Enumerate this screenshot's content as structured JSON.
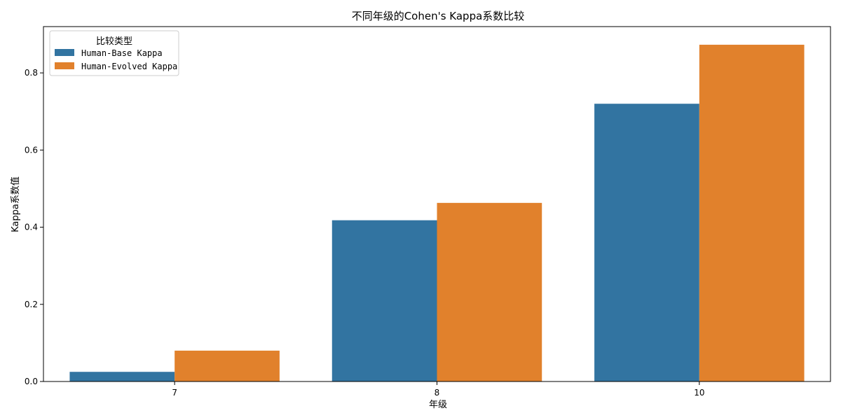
{
  "chart_data": {
    "type": "bar",
    "title": "不同年级的Cohen's Kappa系数比较",
    "xlabel": "年级",
    "ylabel": "Kappa系数值",
    "categories": [
      "7",
      "8",
      "10"
    ],
    "series": [
      {
        "name": "Human-Base Kappa",
        "color": "#3274a1",
        "values": [
          0.025,
          0.418,
          0.72
        ]
      },
      {
        "name": "Human-Evolved Kappa",
        "color": "#e1812c",
        "values": [
          0.08,
          0.463,
          0.873
        ]
      }
    ],
    "ylim": [
      0,
      0.92
    ],
    "yticks": [
      0.0,
      0.2,
      0.4,
      0.6,
      0.8
    ],
    "ytick_labels": [
      "0.0",
      "0.2",
      "0.4",
      "0.6",
      "0.8"
    ],
    "legend": {
      "title": "比较类型",
      "placement": "top-left"
    },
    "grid": false
  }
}
